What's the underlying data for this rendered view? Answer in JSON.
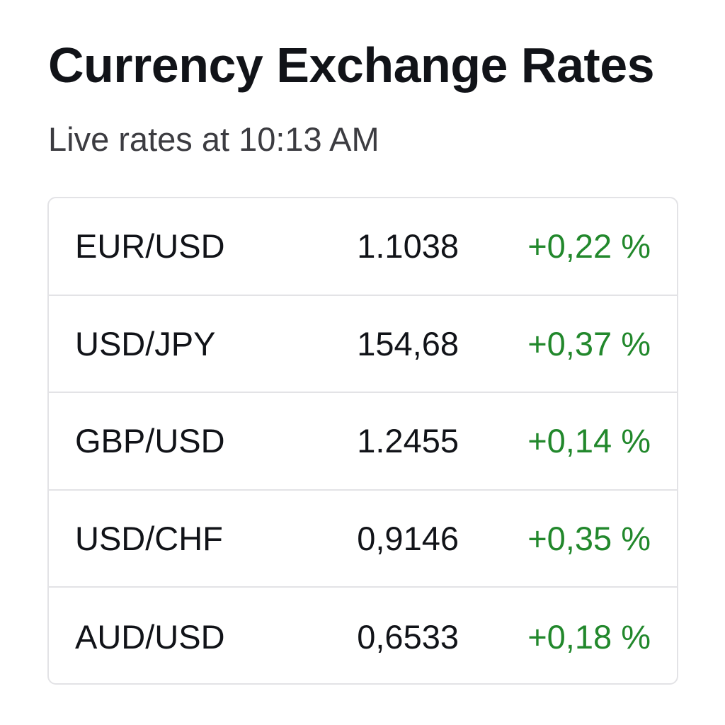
{
  "header": {
    "title": "Currency Exchange Rates",
    "subtitle": "Live rates at 10:13 AM"
  },
  "rates": [
    {
      "pair": "EUR/USD",
      "rate": "1.1038",
      "change": "+0,22 %"
    },
    {
      "pair": "USD/JPY",
      "rate": "154,68",
      "change": "+0,37 %"
    },
    {
      "pair": "GBP/USD",
      "rate": "1.2455",
      "change": "+0,14 %"
    },
    {
      "pair": "USD/CHF",
      "rate": "0,9146",
      "change": "+0,35 %"
    },
    {
      "pair": "AUD/USD",
      "rate": "0,6533",
      "change": "+0,18 %"
    }
  ],
  "colors": {
    "positive_change": "#22882c",
    "text_primary": "#111318",
    "border": "#e3e3e6"
  }
}
